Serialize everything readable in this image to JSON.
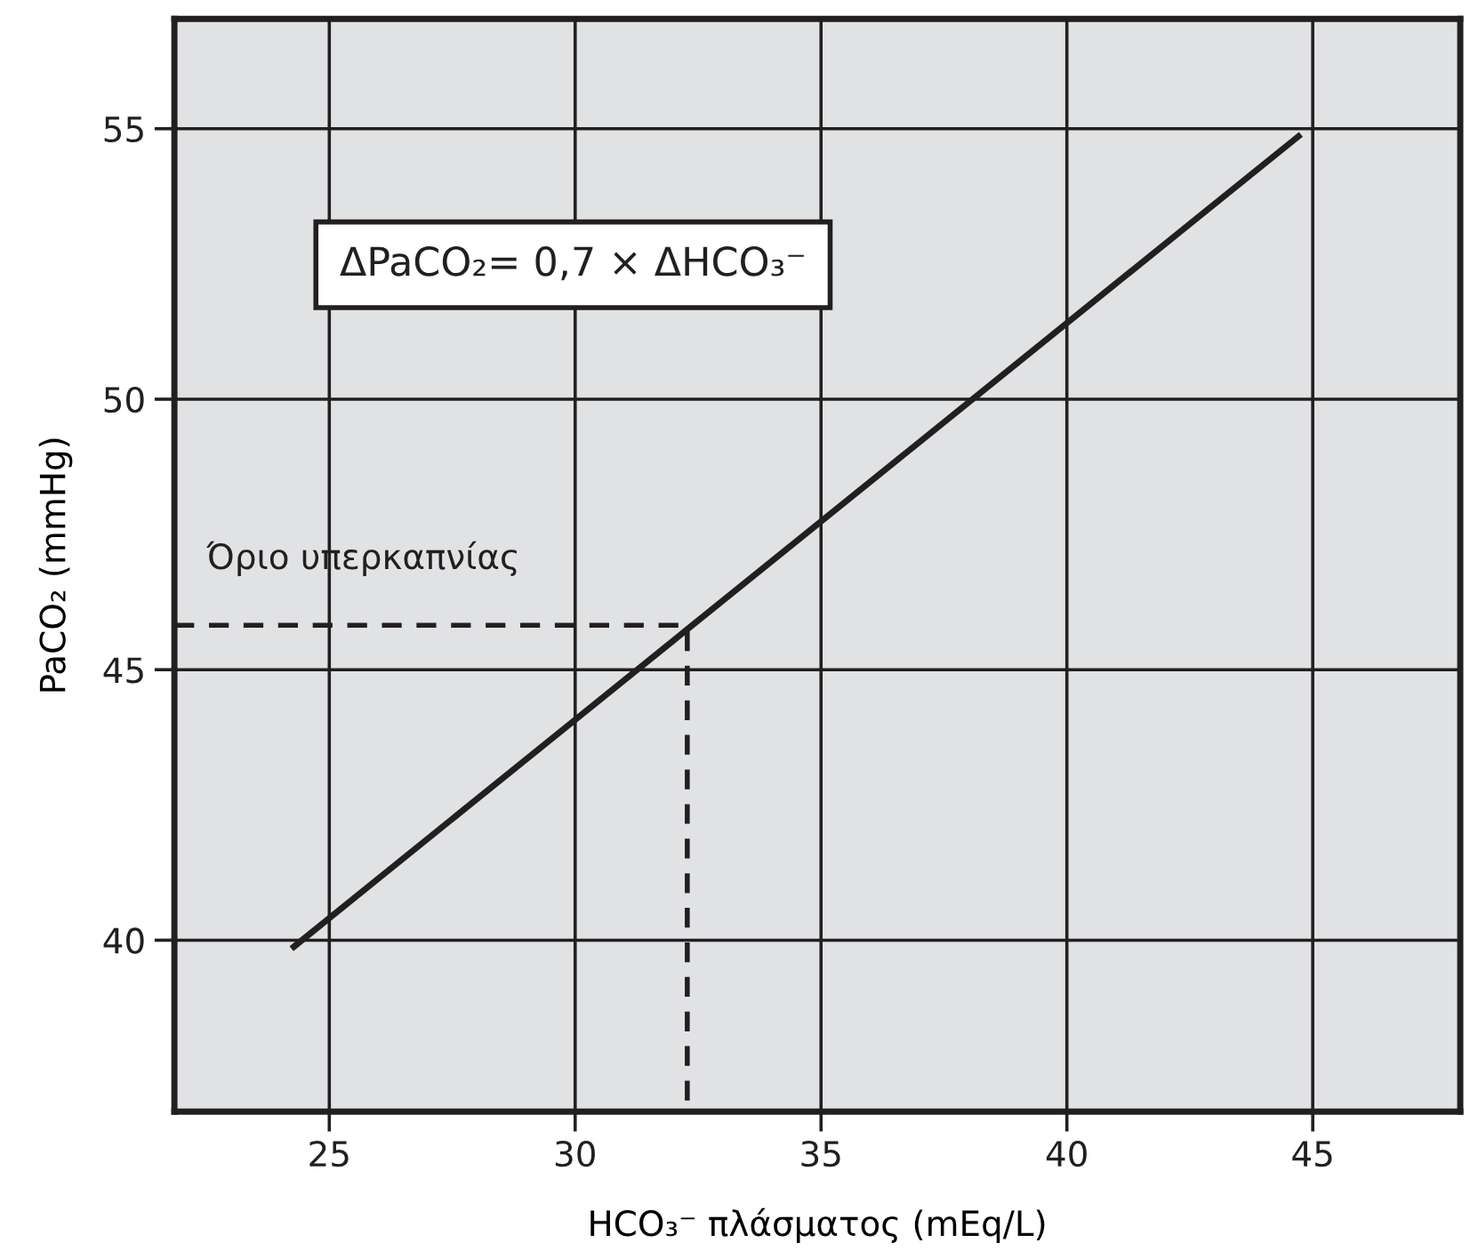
{
  "chart_data": {
    "type": "line",
    "xlabel": "HCO₃⁻ πλάσματος (mEq/L)",
    "ylabel": "PaCO₂ (mmHg)",
    "series": [
      {
        "color": "#231f20",
        "x": [
          24.28,
          44.71
        ],
        "values": [
          39.88,
          54.86
        ],
        "line_style": "solid"
      },
      {
        "color": "#231f20",
        "x": [
          21.85,
          32.28,
          32.28
        ],
        "values": [
          45.82,
          45.82,
          36.83
        ],
        "line_style": "dashed"
      }
    ],
    "annotations": [
      "Όριο υπερκαπνίας",
      "ΔPaCO₂= 0,7 × ΔHCO₃⁻"
    ],
    "xlim": [
      21.85,
      48
    ],
    "ylim": [
      36.83,
      57.03
    ],
    "xticks": [
      25,
      30,
      35,
      40,
      45
    ],
    "yticks": [
      40,
      45,
      50,
      55
    ],
    "grid": true
  }
}
